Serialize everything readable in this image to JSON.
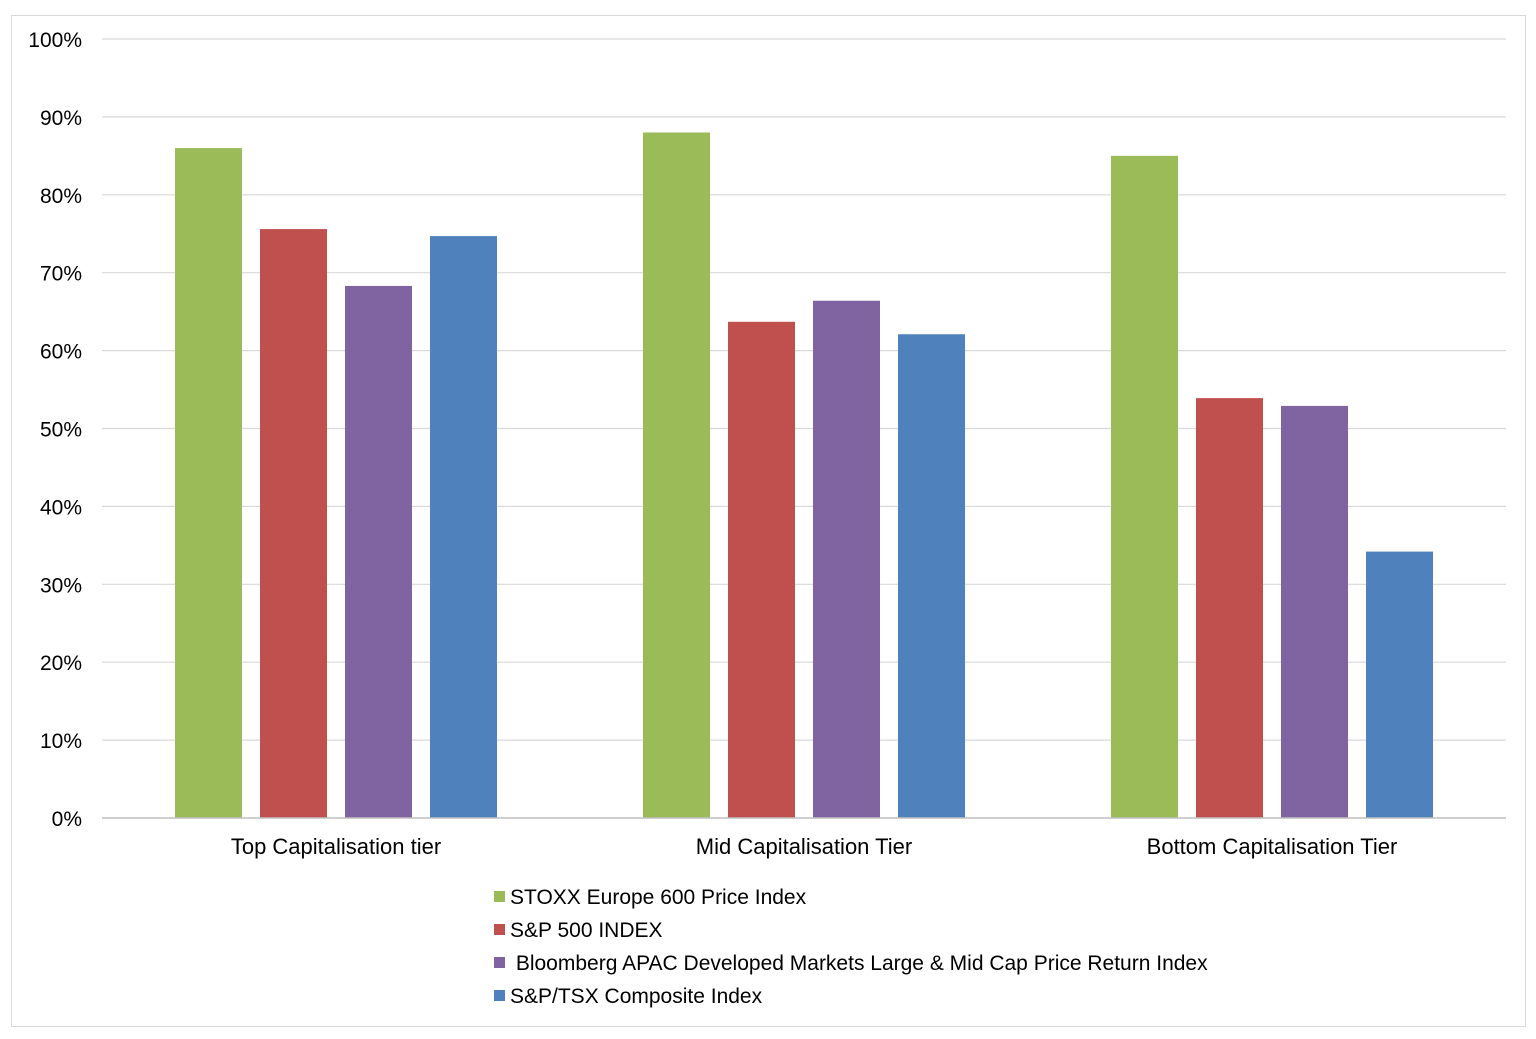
{
  "chart_data": {
    "type": "bar",
    "title": "",
    "xlabel": "",
    "ylabel": "",
    "ylim": [
      0,
      1
    ],
    "y_tick_labels": [
      "0%",
      "10%",
      "20%",
      "30%",
      "40%",
      "50%",
      "60%",
      "70%",
      "80%",
      "90%",
      "100%"
    ],
    "grid": true,
    "legend_position": "bottom",
    "categories": [
      "Top Capitalisation tier",
      "Mid Capitalisation Tier",
      "Bottom Capitalisation Tier"
    ],
    "series": [
      {
        "name": "STOXX Europe 600 Price Index",
        "color": "#9bbb59",
        "values": [
          0.86,
          0.88,
          0.85
        ]
      },
      {
        "name": "S&P 500 INDEX",
        "color": "#c0504d",
        "values": [
          0.756,
          0.637,
          0.539
        ]
      },
      {
        "name": " Bloomberg APAC Developed Markets Large & Mid Cap Price Return Index",
        "color": "#8064a2",
        "values": [
          0.683,
          0.664,
          0.529
        ]
      },
      {
        "name": "S&P/TSX Composite Index",
        "color": "#4f81bd",
        "values": [
          0.747,
          0.621,
          0.342
        ]
      }
    ]
  }
}
